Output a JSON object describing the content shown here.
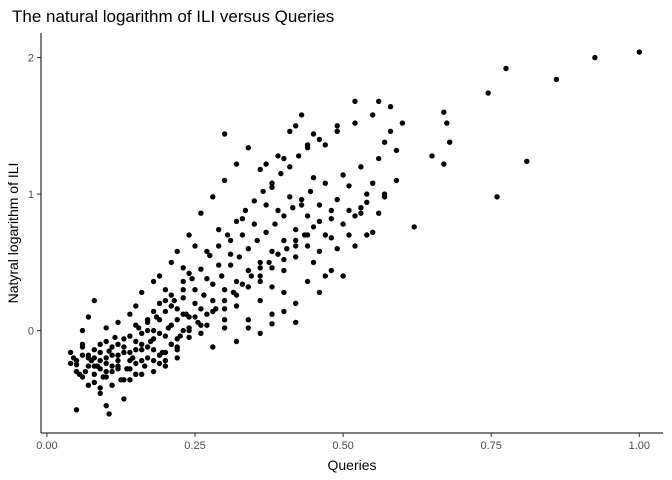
{
  "chart_data": {
    "type": "scatter",
    "title": "The natural logarithm of ILI versus Queries",
    "xlabel": "Queries",
    "ylabel": "Natyral logarithm of ILI",
    "xlim": [
      -0.01,
      1.04
    ],
    "ylim": [
      -0.75,
      2.18
    ],
    "xticks": [
      0.0,
      0.25,
      0.5,
      0.75,
      1.0
    ],
    "xtick_labels": [
      "0.00",
      "0.25",
      "0.50",
      "0.75",
      "1.00"
    ],
    "yticks": [
      0,
      1,
      2
    ],
    "ytick_labels": [
      "0",
      "1",
      "2"
    ],
    "grid": false,
    "legend": "none",
    "point_color": "#000000",
    "points": [
      [
        0.04,
        -0.16
      ],
      [
        0.045,
        -0.2
      ],
      [
        0.05,
        -0.25
      ],
      [
        0.055,
        -0.32
      ],
      [
        0.06,
        -0.12
      ],
      [
        0.065,
        -0.3
      ],
      [
        0.07,
        -0.18
      ],
      [
        0.075,
        -0.22
      ],
      [
        0.08,
        -0.38
      ],
      [
        0.085,
        -0.26
      ],
      [
        0.09,
        -0.1
      ],
      [
        0.095,
        -0.34
      ],
      [
        0.1,
        -0.2
      ],
      [
        0.105,
        -0.15
      ],
      [
        0.11,
        -0.3
      ],
      [
        0.115,
        -0.05
      ],
      [
        0.12,
        -0.22
      ],
      [
        0.125,
        -0.36
      ],
      [
        0.13,
        -0.12
      ],
      [
        0.135,
        -0.28
      ],
      [
        0.14,
        -0.04
      ],
      [
        0.145,
        -0.2
      ],
      [
        0.15,
        -0.32
      ],
      [
        0.155,
        0.02
      ],
      [
        0.16,
        -0.14
      ],
      [
        0.165,
        -0.26
      ],
      [
        0.17,
        0.06
      ],
      [
        0.175,
        -0.08
      ],
      [
        0.18,
        -0.22
      ],
      [
        0.185,
        0.1
      ],
      [
        0.19,
        -0.02
      ],
      [
        0.195,
        -0.16
      ],
      [
        0.2,
        0.14
      ],
      [
        0.205,
        0.02
      ],
      [
        0.21,
        -0.1
      ],
      [
        0.215,
        0.22
      ],
      [
        0.22,
        0.08
      ],
      [
        0.225,
        -0.04
      ],
      [
        0.23,
        0.3
      ],
      [
        0.235,
        0.12
      ],
      [
        0.24,
        0.02
      ],
      [
        0.245,
        0.38
      ],
      [
        0.25,
        0.2
      ],
      [
        0.255,
        0.06
      ],
      [
        0.26,
        0.45
      ],
      [
        0.265,
        0.26
      ],
      [
        0.27,
        0.12
      ],
      [
        0.275,
        0.55
      ],
      [
        0.28,
        0.34
      ],
      [
        0.285,
        0.16
      ],
      [
        0.29,
        0.62
      ],
      [
        0.295,
        0.4
      ],
      [
        0.3,
        0.22
      ],
      [
        0.305,
        0.7
      ],
      [
        0.31,
        0.48
      ],
      [
        0.315,
        0.28
      ],
      [
        0.32,
        0.8
      ],
      [
        0.325,
        0.54
      ],
      [
        0.33,
        0.34
      ],
      [
        0.335,
        0.88
      ],
      [
        0.34,
        0.6
      ],
      [
        0.345,
        0.4
      ],
      [
        0.35,
        0.95
      ],
      [
        0.355,
        0.66
      ],
      [
        0.36,
        0.46
      ],
      [
        0.365,
        1.02
      ],
      [
        0.37,
        0.72
      ],
      [
        0.375,
        0.5
      ],
      [
        0.38,
        1.08
      ],
      [
        0.385,
        0.78
      ],
      [
        0.39,
        0.56
      ],
      [
        0.395,
        1.15
      ],
      [
        0.4,
        0.84
      ],
      [
        0.405,
        0.6
      ],
      [
        0.41,
        1.2
      ],
      [
        0.415,
        0.9
      ],
      [
        0.42,
        0.66
      ],
      [
        0.425,
        1.28
      ],
      [
        0.43,
        0.96
      ],
      [
        0.435,
        0.7
      ],
      [
        0.44,
        1.34
      ],
      [
        0.445,
        1.02
      ],
      [
        0.45,
        0.76
      ],
      [
        0.46,
        1.4
      ],
      [
        0.47,
        1.08
      ],
      [
        0.48,
        0.82
      ],
      [
        0.49,
        1.46
      ],
      [
        0.5,
        1.14
      ],
      [
        0.51,
        0.88
      ],
      [
        0.52,
        1.52
      ],
      [
        0.53,
        1.2
      ],
      [
        0.54,
        0.94
      ],
      [
        0.55,
        1.58
      ],
      [
        0.56,
        1.26
      ],
      [
        0.57,
        1.0
      ],
      [
        0.58,
        1.64
      ],
      [
        0.59,
        1.32
      ],
      [
        0.6,
        1.52
      ],
      [
        0.05,
        -0.58
      ],
      [
        0.09,
        -0.42
      ],
      [
        0.105,
        -0.61
      ],
      [
        0.13,
        -0.5
      ],
      [
        0.08,
        0.22
      ],
      [
        0.12,
        0.06
      ],
      [
        0.15,
        0.18
      ],
      [
        0.09,
        -0.46
      ],
      [
        0.1,
        -0.55
      ],
      [
        0.11,
        -0.4
      ],
      [
        0.06,
        0.0
      ],
      [
        0.07,
        0.1
      ],
      [
        0.1,
        0.02
      ],
      [
        0.14,
        0.12
      ],
      [
        0.16,
        0.28
      ],
      [
        0.18,
        0.36
      ],
      [
        0.2,
        0.22
      ],
      [
        0.22,
        0.58
      ],
      [
        0.24,
        0.7
      ],
      [
        0.26,
        0.86
      ],
      [
        0.28,
        0.98
      ],
      [
        0.3,
        1.1
      ],
      [
        0.32,
        1.22
      ],
      [
        0.34,
        1.34
      ],
      [
        0.3,
        1.44
      ],
      [
        0.36,
        1.18
      ],
      [
        0.38,
        1.05
      ],
      [
        0.4,
        1.26
      ],
      [
        0.42,
        1.5
      ],
      [
        0.44,
        1.36
      ],
      [
        0.18,
        0.0
      ],
      [
        0.2,
        -0.22
      ],
      [
        0.22,
        -0.06
      ],
      [
        0.24,
        0.1
      ],
      [
        0.26,
        -0.02
      ],
      [
        0.28,
        0.14
      ],
      [
        0.3,
        0.02
      ],
      [
        0.32,
        0.18
      ],
      [
        0.34,
        0.08
      ],
      [
        0.36,
        0.22
      ],
      [
        0.38,
        0.12
      ],
      [
        0.4,
        0.28
      ],
      [
        0.42,
        0.2
      ],
      [
        0.44,
        0.36
      ],
      [
        0.46,
        0.28
      ],
      [
        0.48,
        0.44
      ],
      [
        0.5,
        0.4
      ],
      [
        0.52,
        0.62
      ],
      [
        0.54,
        0.7
      ],
      [
        0.56,
        0.86
      ],
      [
        0.24,
        -0.05
      ],
      [
        0.26,
        0.04
      ],
      [
        0.28,
        -0.12
      ],
      [
        0.3,
        0.08
      ],
      [
        0.32,
        -0.08
      ],
      [
        0.34,
        0.02
      ],
      [
        0.36,
        -0.02
      ],
      [
        0.38,
        0.05
      ],
      [
        0.4,
        0.14
      ],
      [
        0.42,
        0.06
      ],
      [
        0.19,
        0.4
      ],
      [
        0.21,
        0.5
      ],
      [
        0.23,
        0.46
      ],
      [
        0.25,
        0.62
      ],
      [
        0.27,
        0.58
      ],
      [
        0.29,
        0.74
      ],
      [
        0.31,
        0.66
      ],
      [
        0.33,
        0.82
      ],
      [
        0.35,
        0.78
      ],
      [
        0.37,
        0.92
      ],
      [
        0.39,
        0.88
      ],
      [
        0.41,
        0.98
      ],
      [
        0.43,
        0.92
      ],
      [
        0.45,
        1.12
      ],
      [
        0.47,
        0.7
      ],
      [
        0.49,
        0.96
      ],
      [
        0.51,
        1.06
      ],
      [
        0.53,
        0.86
      ],
      [
        0.55,
        1.08
      ],
      [
        0.57,
        1.38
      ],
      [
        0.08,
        -0.26
      ],
      [
        0.1,
        -0.3
      ],
      [
        0.12,
        -0.18
      ],
      [
        0.14,
        -0.22
      ],
      [
        0.16,
        -0.1
      ],
      [
        0.18,
        -0.14
      ],
      [
        0.2,
        -0.04
      ],
      [
        0.22,
        -0.12
      ],
      [
        0.24,
        0.0
      ],
      [
        0.26,
        0.16
      ],
      [
        0.28,
        0.22
      ],
      [
        0.3,
        0.3
      ],
      [
        0.32,
        0.36
      ],
      [
        0.34,
        0.44
      ],
      [
        0.36,
        0.5
      ],
      [
        0.38,
        0.58
      ],
      [
        0.4,
        0.66
      ],
      [
        0.42,
        0.74
      ],
      [
        0.44,
        0.84
      ],
      [
        0.46,
        0.92
      ],
      [
        0.06,
        -0.34
      ],
      [
        0.07,
        -0.4
      ],
      [
        0.08,
        -0.14
      ],
      [
        0.09,
        -0.22
      ],
      [
        0.1,
        -0.08
      ],
      [
        0.11,
        -0.18
      ],
      [
        0.12,
        -0.28
      ],
      [
        0.13,
        -0.16
      ],
      [
        0.14,
        -0.36
      ],
      [
        0.15,
        -0.24
      ],
      [
        0.16,
        -0.32
      ],
      [
        0.17,
        -0.2
      ],
      [
        0.18,
        -0.3
      ],
      [
        0.19,
        -0.18
      ],
      [
        0.2,
        -0.26
      ],
      [
        0.21,
        -0.1
      ],
      [
        0.22,
        -0.2
      ],
      [
        0.23,
        0.0
      ],
      [
        0.25,
        0.1
      ],
      [
        0.27,
        0.04
      ],
      [
        0.05,
        -0.22
      ],
      [
        0.06,
        -0.18
      ],
      [
        0.07,
        -0.26
      ],
      [
        0.08,
        -0.2
      ],
      [
        0.09,
        -0.28
      ],
      [
        0.1,
        -0.24
      ],
      [
        0.11,
        -0.12
      ],
      [
        0.12,
        -0.26
      ],
      [
        0.13,
        -0.06
      ],
      [
        0.14,
        -0.16
      ],
      [
        0.15,
        0.04
      ],
      [
        0.16,
        -0.02
      ],
      [
        0.17,
        0.08
      ],
      [
        0.18,
        0.14
      ],
      [
        0.19,
        0.2
      ],
      [
        0.2,
        0.3
      ],
      [
        0.21,
        0.26
      ],
      [
        0.22,
        0.16
      ],
      [
        0.23,
        0.36
      ],
      [
        0.24,
        0.42
      ],
      [
        0.45,
        0.5
      ],
      [
        0.47,
        0.4
      ],
      [
        0.49,
        0.6
      ],
      [
        0.51,
        0.7
      ],
      [
        0.53,
        0.9
      ],
      [
        0.55,
        0.72
      ],
      [
        0.57,
        0.98
      ],
      [
        0.59,
        1.1
      ],
      [
        0.62,
        0.76
      ],
      [
        0.65,
        1.28
      ],
      [
        0.58,
        1.46
      ],
      [
        0.56,
        1.68
      ],
      [
        0.52,
        1.68
      ],
      [
        0.49,
        1.5
      ],
      [
        0.47,
        1.36
      ],
      [
        0.45,
        1.44
      ],
      [
        0.43,
        1.58
      ],
      [
        0.41,
        1.46
      ],
      [
        0.39,
        1.28
      ],
      [
        0.37,
        1.22
      ],
      [
        0.67,
        1.6
      ],
      [
        0.675,
        1.52
      ],
      [
        0.68,
        1.38
      ],
      [
        0.67,
        1.22
      ],
      [
        0.745,
        1.74
      ],
      [
        0.76,
        0.98
      ],
      [
        0.775,
        1.92
      ],
      [
        0.81,
        1.24
      ],
      [
        0.86,
        1.84
      ],
      [
        0.925,
        2.0
      ],
      [
        1.0,
        2.04
      ],
      [
        0.33,
        0.7
      ],
      [
        0.31,
        0.56
      ],
      [
        0.29,
        0.48
      ],
      [
        0.27,
        0.38
      ],
      [
        0.25,
        0.3
      ],
      [
        0.23,
        0.24
      ],
      [
        0.21,
        0.18
      ],
      [
        0.19,
        0.08
      ],
      [
        0.17,
        0.0
      ],
      [
        0.15,
        -0.08
      ],
      [
        0.36,
        0.36
      ],
      [
        0.38,
        0.32
      ],
      [
        0.4,
        0.44
      ],
      [
        0.42,
        0.54
      ],
      [
        0.44,
        0.62
      ],
      [
        0.46,
        0.58
      ],
      [
        0.48,
        0.68
      ],
      [
        0.5,
        0.78
      ],
      [
        0.52,
        0.84
      ],
      [
        0.54,
        1.0
      ],
      [
        0.04,
        -0.24
      ],
      [
        0.05,
        -0.3
      ],
      [
        0.06,
        -0.1
      ],
      [
        0.07,
        -0.2
      ],
      [
        0.08,
        -0.32
      ],
      [
        0.09,
        -0.16
      ],
      [
        0.1,
        -0.34
      ],
      [
        0.11,
        -0.26
      ],
      [
        0.12,
        -0.1
      ],
      [
        0.13,
        -0.36
      ],
      [
        0.14,
        -0.28
      ],
      [
        0.15,
        -0.14
      ],
      [
        0.16,
        -0.22
      ],
      [
        0.17,
        -0.12
      ],
      [
        0.18,
        -0.06
      ],
      [
        0.19,
        -0.24
      ],
      [
        0.2,
        -0.16
      ],
      [
        0.21,
        0.04
      ],
      [
        0.22,
        -0.14
      ],
      [
        0.23,
        0.12
      ],
      [
        0.3,
        0.16
      ],
      [
        0.32,
        0.26
      ],
      [
        0.34,
        0.32
      ],
      [
        0.36,
        0.4
      ],
      [
        0.38,
        0.46
      ],
      [
        0.4,
        0.52
      ],
      [
        0.42,
        0.62
      ],
      [
        0.44,
        0.7
      ],
      [
        0.46,
        0.8
      ],
      [
        0.48,
        0.88
      ]
    ]
  }
}
